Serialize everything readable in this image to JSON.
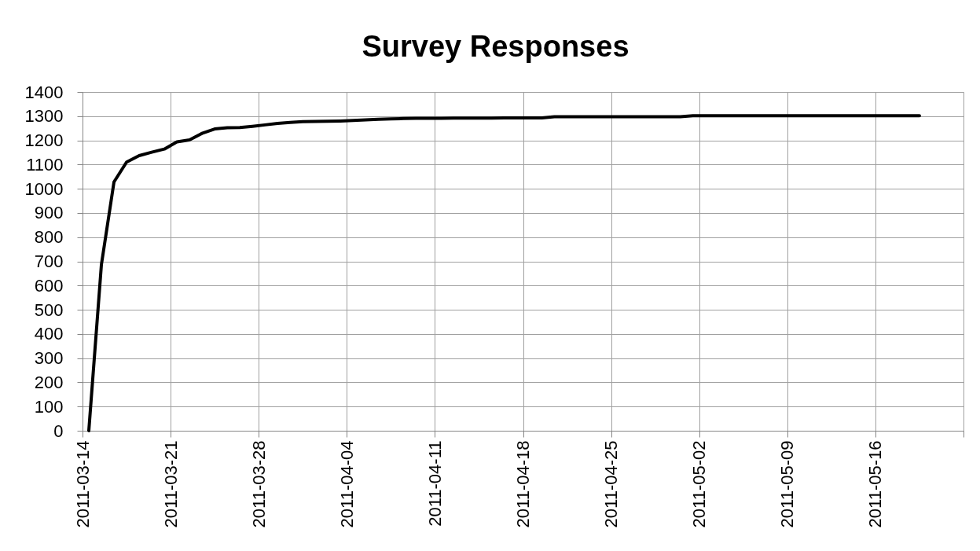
{
  "chart_data": {
    "type": "line",
    "title": "Survey Responses",
    "x": [
      "2011-03-14T12:00",
      "2011-03-15T12:00",
      "2011-03-16T12:00",
      "2011-03-17T12:00",
      "2011-03-18T12:00",
      "2011-03-19T12:00",
      "2011-03-20T12:00",
      "2011-03-21T12:00",
      "2011-03-22T12:00",
      "2011-03-23T12:00",
      "2011-03-24T12:00",
      "2011-03-25T12:00",
      "2011-03-26T12:00",
      "2011-03-27T12:00",
      "2011-03-28T12:00",
      "2011-03-29T12:00",
      "2011-03-30T12:00",
      "2011-03-31T12:00",
      "2011-04-01T12:00",
      "2011-04-02T12:00",
      "2011-04-03T12:00",
      "2011-04-04T12:00",
      "2011-04-05T12:00",
      "2011-04-06T12:00",
      "2011-04-07T12:00",
      "2011-04-08T12:00",
      "2011-04-09T12:00",
      "2011-04-10T12:00",
      "2011-04-11T12:00",
      "2011-04-12T12:00",
      "2011-04-13T12:00",
      "2011-04-14T12:00",
      "2011-04-15T12:00",
      "2011-04-16T12:00",
      "2011-04-17T12:00",
      "2011-04-18T12:00",
      "2011-04-19T12:00",
      "2011-04-20T12:00",
      "2011-04-21T12:00",
      "2011-04-22T12:00",
      "2011-04-23T12:00",
      "2011-04-24T12:00",
      "2011-04-25T12:00",
      "2011-04-26T12:00",
      "2011-04-27T12:00",
      "2011-04-28T12:00",
      "2011-04-29T12:00",
      "2011-04-30T12:00",
      "2011-05-01T12:00",
      "2011-05-02T12:00",
      "2011-05-03T12:00",
      "2011-05-04T12:00",
      "2011-05-05T12:00",
      "2011-05-06T12:00",
      "2011-05-07T12:00",
      "2011-05-08T12:00",
      "2011-05-09T12:00",
      "2011-05-10T12:00",
      "2011-05-11T12:00",
      "2011-05-12T12:00",
      "2011-05-13T12:00",
      "2011-05-14T12:00",
      "2011-05-15T12:00",
      "2011-05-16T12:00",
      "2011-05-17T12:00",
      "2011-05-18T12:00",
      "2011-05-19T12:00"
    ],
    "series": [
      {
        "color": "#000000",
        "values": [
          0,
          686,
          1028,
          1110,
          1137,
          1151,
          1164,
          1194,
          1202,
          1229,
          1247,
          1252,
          1253,
          1258,
          1264,
          1270,
          1274,
          1277,
          1278,
          1279,
          1280,
          1282,
          1285,
          1287,
          1289,
          1290,
          1291,
          1291,
          1291,
          1292,
          1292,
          1292,
          1292,
          1293,
          1293,
          1293,
          1293,
          1298,
          1298,
          1298,
          1298,
          1298,
          1298,
          1298,
          1298,
          1298,
          1298,
          1298,
          1302,
          1302,
          1302,
          1302,
          1302,
          1302,
          1302,
          1302,
          1302,
          1302,
          1302,
          1302,
          1302,
          1302,
          1302,
          1302,
          1302,
          1302,
          1302
        ]
      }
    ],
    "xlim": [
      "2011-03-14",
      "2011-05-23"
    ],
    "xticks": [
      "2011-03-14",
      "2011-03-21",
      "2011-03-28",
      "2011-04-04",
      "2011-04-11",
      "2011-04-18",
      "2011-04-25",
      "2011-05-02",
      "2011-05-09",
      "2011-05-16",
      {
        "value": "2011-05-23",
        "label": null
      }
    ],
    "ylim": [
      0,
      1400
    ],
    "yticks": [
      0,
      100,
      200,
      300,
      400,
      500,
      600,
      700,
      800,
      900,
      1000,
      1100,
      1200,
      1300,
      1400
    ],
    "grid": true,
    "line_style": "solid"
  }
}
